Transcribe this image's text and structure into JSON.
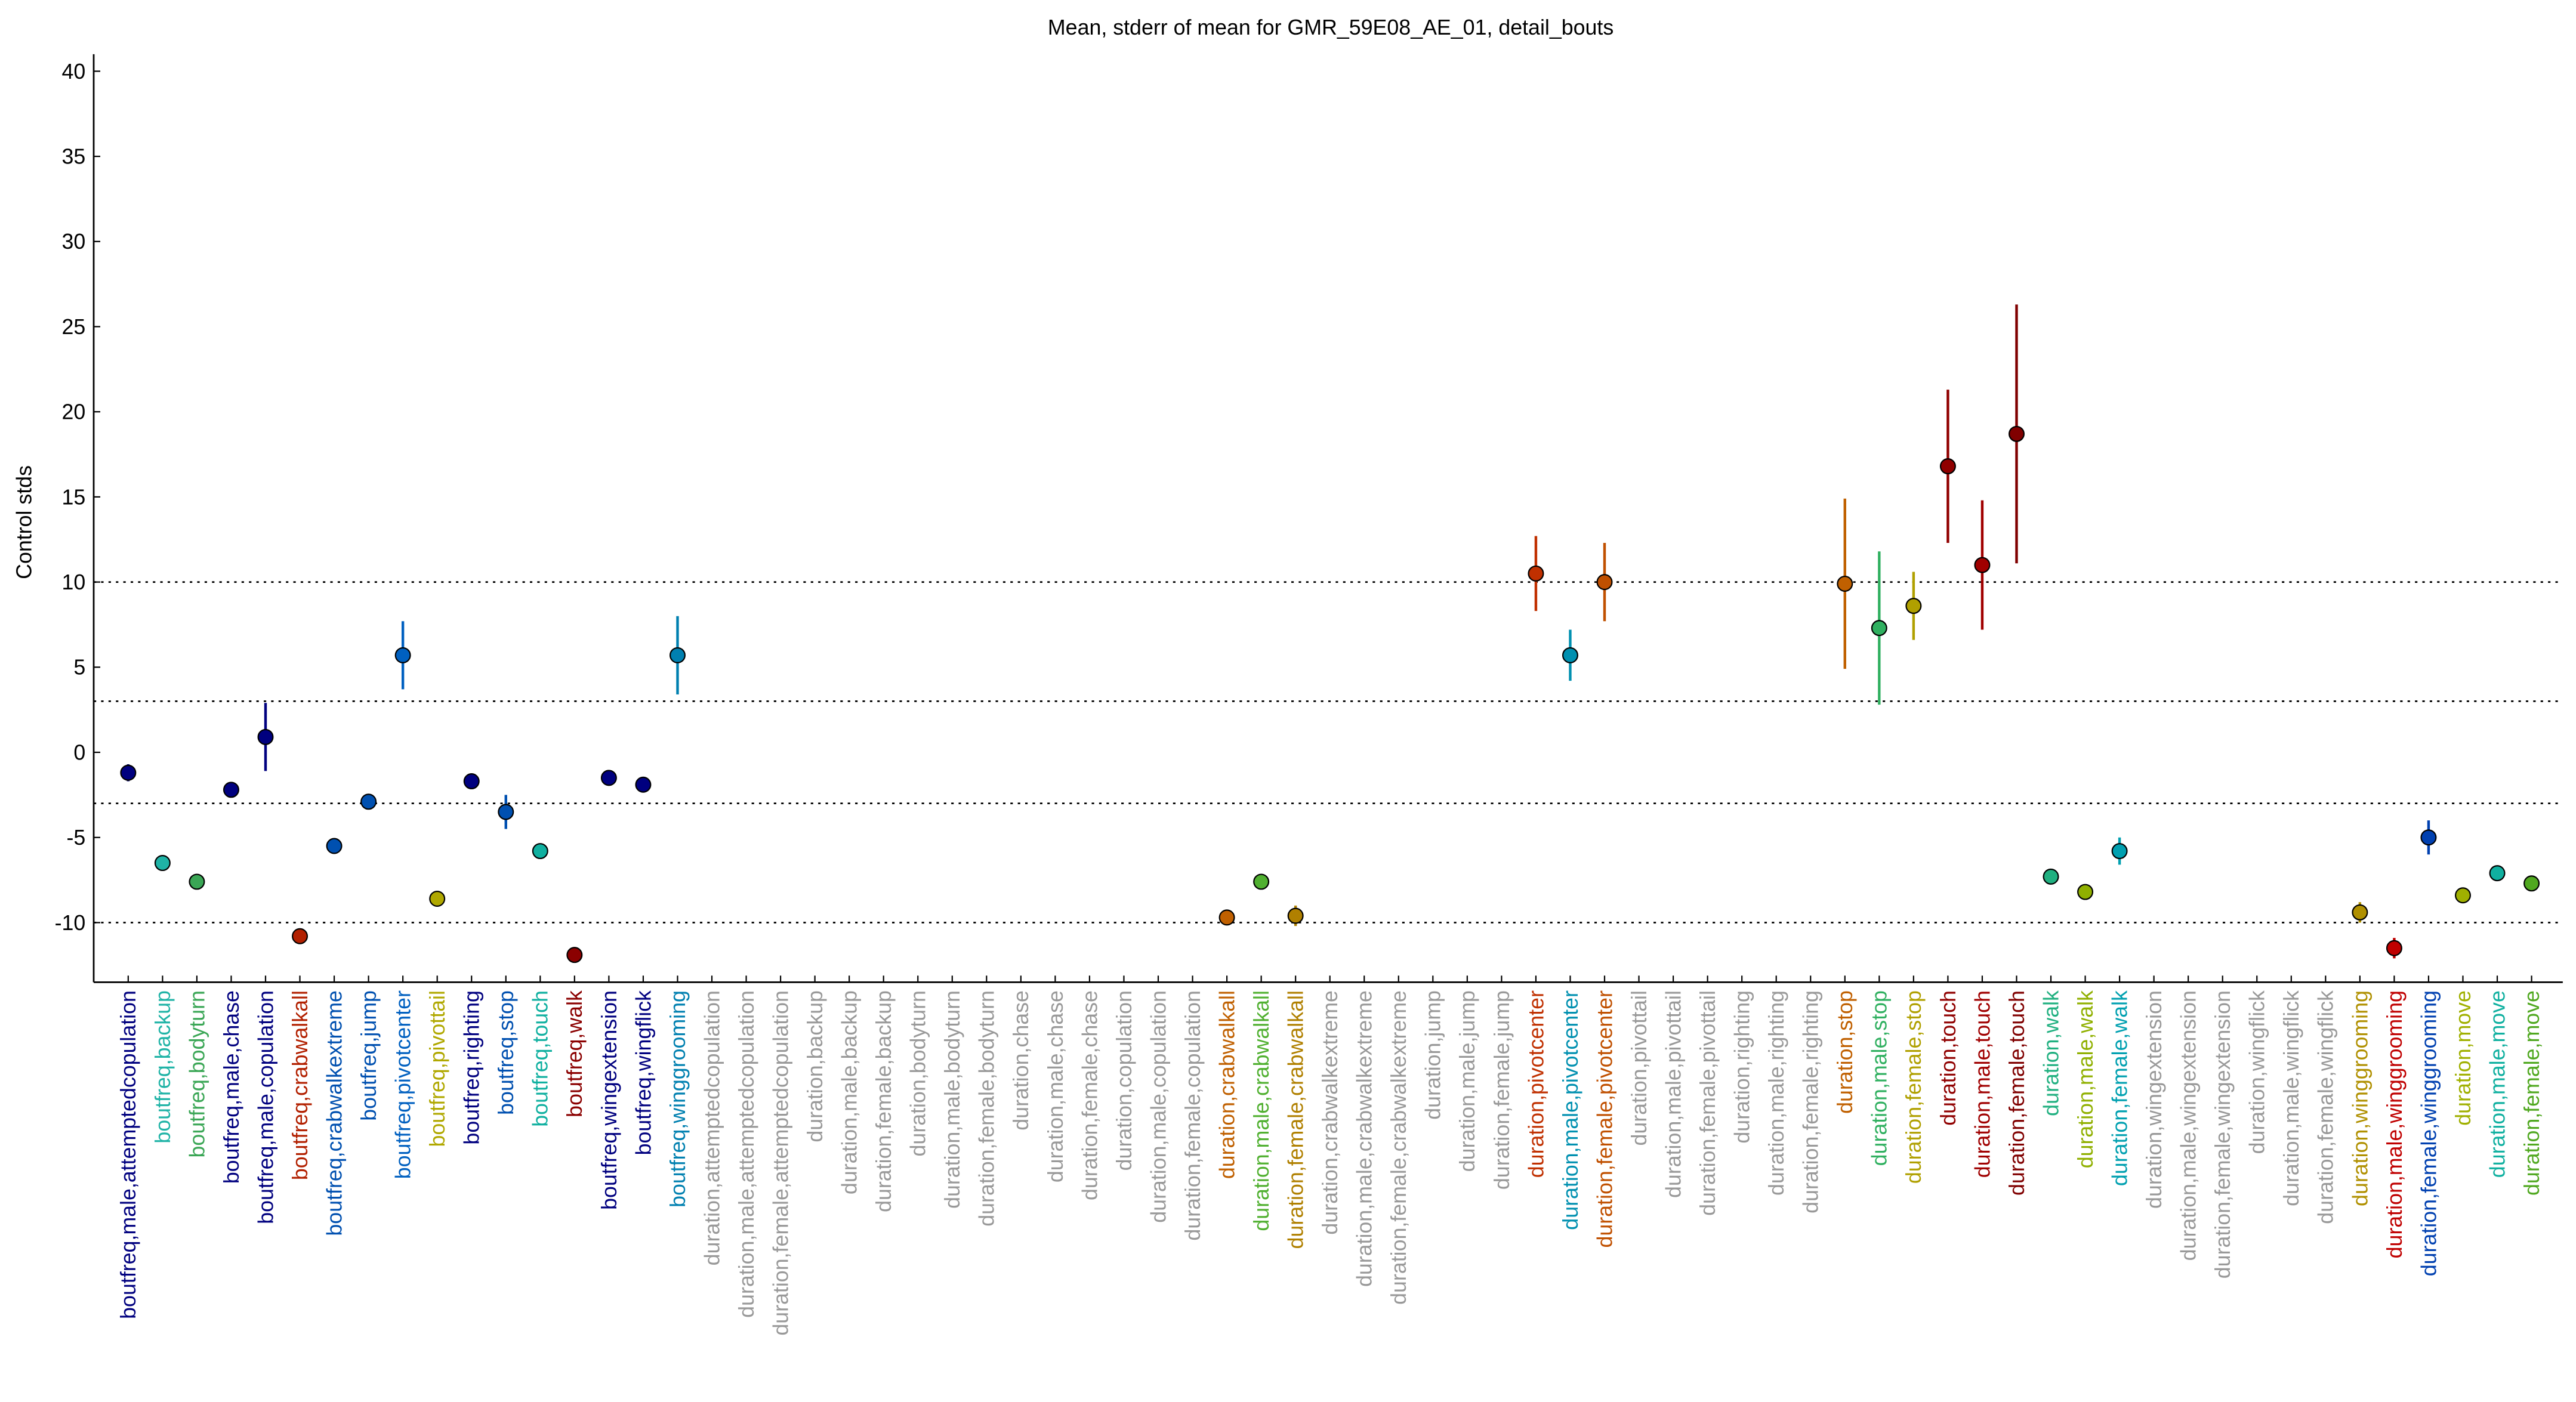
{
  "chart_data": {
    "type": "errorbar",
    "title": "Mean, stderr of mean for GMR_59E08_AE_01, detail_bouts",
    "ylabel": "Control stds",
    "categories": [
      "boutfreq,male,attemptedcopulation",
      "boutfreq,backup",
      "boutfreq,bodyturn",
      "boutfreq,male,chase",
      "boutfreq,male,copulation",
      "boutfreq,crabwalkall",
      "boutfreq,crabwalkextreme",
      "boutfreq,jump",
      "boutfreq,pivotcenter",
      "boutfreq,pivottail",
      "boutfreq,righting",
      "boutfreq,stop",
      "boutfreq,touch",
      "boutfreq,walk",
      "boutfreq,wingextension",
      "boutfreq,wingflick",
      "boutfreq,winggrooming",
      "duration,attemptedcopulation",
      "duration,male,attemptedcopulation",
      "duration,female,attemptedcopulation",
      "duration,backup",
      "duration,male,backup",
      "duration,female,backup",
      "duration,bodyturn",
      "duration,male,bodyturn",
      "duration,female,bodyturn",
      "duration,chase",
      "duration,male,chase",
      "duration,female,chase",
      "duration,copulation",
      "duration,male,copulation",
      "duration,female,copulation",
      "duration,crabwalkall",
      "duration,male,crabwalkall",
      "duration,female,crabwalkall",
      "duration,crabwalkextreme",
      "duration,male,crabwalkextreme",
      "duration,female,crabwalkextreme",
      "duration,jump",
      "duration,male,jump",
      "duration,female,jump",
      "duration,pivotcenter",
      "duration,male,pivotcenter",
      "duration,female,pivotcenter",
      "duration,pivottail",
      "duration,male,pivottail",
      "duration,female,pivottail",
      "duration,righting",
      "duration,male,righting",
      "duration,female,righting",
      "duration,stop",
      "duration,male,stop",
      "duration,female,stop",
      "duration,touch",
      "duration,male,touch",
      "duration,female,touch",
      "duration,walk",
      "duration,male,walk",
      "duration,female,walk",
      "duration,wingextension",
      "duration,male,wingextension",
      "duration,female,wingextension",
      "duration,wingflick",
      "duration,male,wingflick",
      "duration,female,wingflick",
      "duration,winggrooming",
      "duration,male,winggrooming",
      "duration,female,winggrooming",
      "duration,move",
      "duration,male,move",
      "duration,female,move"
    ],
    "values": [
      -1.2,
      -6.5,
      -7.6,
      -2.2,
      0.9,
      -10.8,
      -5.5,
      -2.9,
      5.7,
      -8.6,
      -1.7,
      -3.5,
      -5.8,
      -11.9,
      -1.5,
      -1.9,
      5.7,
      null,
      null,
      null,
      null,
      null,
      null,
      null,
      null,
      null,
      null,
      null,
      null,
      null,
      null,
      null,
      -9.7,
      -7.6,
      -9.6,
      null,
      null,
      null,
      null,
      null,
      null,
      10.5,
      5.7,
      10.0,
      null,
      null,
      null,
      null,
      null,
      null,
      9.9,
      7.3,
      8.6,
      16.8,
      11.0,
      18.7,
      -7.3,
      -8.2,
      -5.8,
      null,
      null,
      null,
      null,
      null,
      null,
      -9.4,
      -11.5,
      -5.0,
      -8.4,
      -7.1,
      -7.7
    ],
    "errors": [
      0.5,
      0.3,
      0.3,
      0.3,
      2.0,
      0.3,
      0.3,
      0.2,
      2.0,
      0.3,
      0.2,
      1.0,
      0.3,
      0.3,
      0.4,
      0.3,
      2.3,
      null,
      null,
      null,
      null,
      null,
      null,
      null,
      null,
      null,
      null,
      null,
      null,
      null,
      null,
      null,
      0.4,
      0.3,
      0.6,
      null,
      null,
      null,
      null,
      null,
      null,
      2.2,
      1.5,
      2.3,
      null,
      null,
      null,
      null,
      null,
      null,
      5.0,
      4.5,
      2.0,
      4.5,
      3.8,
      7.6,
      0.4,
      0.3,
      0.8,
      null,
      null,
      null,
      null,
      null,
      null,
      0.6,
      0.6,
      1.0,
      0.3,
      0.3,
      0.3
    ],
    "colors": [
      "#00007f",
      "#1fb3a6",
      "#3aa655",
      "#00007f",
      "#00007f",
      "#b22000",
      "#0050b0",
      "#0050b0",
      "#0060c0",
      "#b0a800",
      "#00007f",
      "#0050b0",
      "#10b0a0",
      "#8b0000",
      "#00007f",
      "#00007f",
      "#0080b0",
      "#999999",
      "#999999",
      "#999999",
      "#999999",
      "#999999",
      "#999999",
      "#999999",
      "#999999",
      "#999999",
      "#999999",
      "#999999",
      "#999999",
      "#999999",
      "#999999",
      "#999999",
      "#c06000",
      "#50b030",
      "#b08000",
      "#999999",
      "#999999",
      "#999999",
      "#999999",
      "#999999",
      "#999999",
      "#c03000",
      "#0090b0",
      "#c05000",
      "#999999",
      "#999999",
      "#999999",
      "#999999",
      "#999999",
      "#999999",
      "#c06000",
      "#30b060",
      "#b0a000",
      "#900000",
      "#a00000",
      "#800000",
      "#20b080",
      "#90b000",
      "#00a0b0",
      "#999999",
      "#999999",
      "#999999",
      "#999999",
      "#999999",
      "#999999",
      "#b09000",
      "#c00000",
      "#0040b0",
      "#a0b000",
      "#10b0a0",
      "#50a820"
    ],
    "ylim": [
      -13.5,
      41
    ],
    "yticks": [
      -10,
      -5,
      0,
      5,
      10,
      15,
      20,
      25,
      30,
      35,
      40
    ],
    "reference_lines": [
      -10,
      -3,
      3,
      10
    ]
  }
}
